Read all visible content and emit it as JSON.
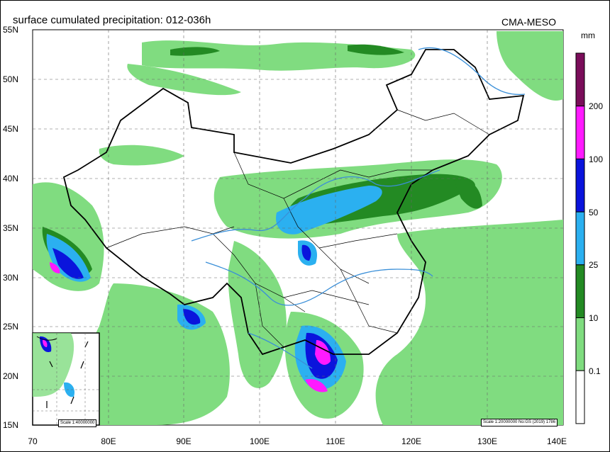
{
  "title": "surface cumulated precipitation: 012-036h",
  "model": "CMA-MESO",
  "unit": "mm",
  "lat_labels": [
    "55N",
    "50N",
    "45N",
    "40N",
    "35N",
    "30N",
    "25N",
    "20N",
    "15N"
  ],
  "lon_labels": [
    "70",
    "80E",
    "90E",
    "100E",
    "110E",
    "120E",
    "130E",
    "140E"
  ],
  "colorbar": {
    "labels": [
      "200",
      "100",
      "50",
      "25",
      "10",
      "0.1"
    ],
    "colors": [
      "#7a0d5a",
      "#ff1aff",
      "#0a14dc",
      "#2bb0f0",
      "#238a23",
      "#7fdc7f",
      "#ffffff"
    ]
  },
  "map": {
    "lon_range": [
      70,
      140
    ],
    "lat_range": [
      15,
      55
    ],
    "colors": {
      "light_green": "#80dc80",
      "dark_green": "#238a23",
      "light_blue": "#2bb0f0",
      "blue": "#0a14dc",
      "magenta": "#ff1aff",
      "river": "#3a8fd8",
      "border": "#000000"
    }
  },
  "inset": {
    "scale_label": "Scale 1:40000000"
  },
  "scale_note": "Scale 1:20000000 No:GS (2019) 1786"
}
